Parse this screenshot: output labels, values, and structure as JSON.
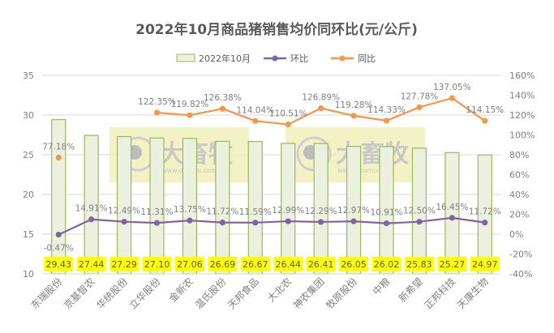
{
  "chart_data": {
    "type": "bar+line",
    "title": "2022年10月商品猪销售均价同环比(元/公斤)",
    "categories": [
      "东瑞股份",
      "京基智农",
      "华统股份",
      "立华股份",
      "金新农",
      "温氏股份",
      "天邦食品",
      "大北农",
      "神农集团",
      "牧原股份",
      "中粮",
      "新希望",
      "正邦科技",
      "天康生物"
    ],
    "series": [
      {
        "name": "2022年10月",
        "type": "bar",
        "axis": "left",
        "values": [
          29.43,
          27.44,
          27.29,
          27.1,
          27.06,
          26.69,
          26.67,
          26.44,
          26.41,
          26.05,
          26.02,
          25.83,
          25.27,
          24.97
        ],
        "labels": [
          "29.43",
          "27.44",
          "27.29",
          "27.10",
          "27.06",
          "26.69",
          "26.67",
          "26.44",
          "26.41",
          "26.05",
          "26.02",
          "25.83",
          "25.27",
          "24.97"
        ]
      },
      {
        "name": "环比",
        "type": "line",
        "axis": "right",
        "values": [
          -0.47,
          14.91,
          12.49,
          11.31,
          13.75,
          11.72,
          11.59,
          12.99,
          12.29,
          12.97,
          10.91,
          12.5,
          16.45,
          11.72
        ],
        "labels": [
          "-0.47%",
          "14.91%",
          "12.49%",
          "11.31%",
          "13.75%",
          "11.72%",
          "11.59%",
          "12.99%",
          "12.29%",
          "12.97%",
          "10.91%",
          "12.50%",
          "16.45%",
          "11.72%"
        ]
      },
      {
        "name": "同比",
        "type": "line",
        "axis": "right",
        "values": [
          77.18,
          null,
          null,
          122.35,
          119.82,
          126.38,
          114.04,
          110.51,
          126.89,
          119.28,
          114.33,
          127.78,
          137.05,
          114.15
        ],
        "labels": [
          "77.18%",
          "",
          "",
          "122.35%",
          "119.82%",
          "126.38%",
          "114.04%",
          "110.51%",
          "126.89%",
          "119.28%",
          "114.33%",
          "127.78%",
          "137.05%",
          "114.15%"
        ]
      }
    ],
    "ylim": [
      10,
      35
    ],
    "yticks": [
      "10",
      "15",
      "20",
      "25",
      "30",
      "35"
    ],
    "y2lim": [
      -40,
      160
    ],
    "y2ticks": [
      "-40%",
      "-20%",
      "0%",
      "20%",
      "40%",
      "60%",
      "80%",
      "100%",
      "120%",
      "140%",
      "160%"
    ],
    "grid": true,
    "legend": "top",
    "colors": {
      "bar_fill": "#ebf1de",
      "bar_stroke": "#9bbb59",
      "mom": "#8064a2",
      "yoy": "#f79646",
      "label_bg": "#ffff00",
      "title": "#595959",
      "text": "#7f7f7f"
    }
  },
  "watermark": {
    "text": "大畜牧",
    "url": "www.dxumu.com"
  }
}
